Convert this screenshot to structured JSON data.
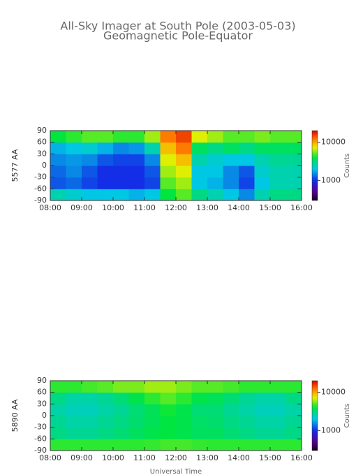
{
  "title": "All-Sky Imager at South Pole (2003-05-03)",
  "subtitle": "Geomagnetic Pole-Equator",
  "chart_data": [
    {
      "type": "heatmap",
      "ylabel": "5577 AA",
      "x": [
        8.25,
        8.75,
        9.25,
        9.75,
        10.25,
        10.75,
        11.25,
        11.75,
        12.25,
        12.75,
        13.25,
        13.75,
        14.25,
        14.75,
        15.25,
        15.75
      ],
      "y": [
        -75,
        -45,
        -15,
        15,
        45,
        75
      ],
      "values": [
        [
          2500,
          2200,
          2000,
          2000,
          2000,
          1800,
          2000,
          4000,
          5000,
          3000,
          2500,
          2000,
          1500,
          2500,
          3000,
          3000
        ],
        [
          1200,
          1300,
          1100,
          1000,
          1000,
          1000,
          1100,
          5000,
          6000,
          2000,
          1800,
          1500,
          1100,
          2000,
          2500,
          2500
        ],
        [
          1300,
          1500,
          1200,
          1000,
          1000,
          1000,
          1200,
          6000,
          7000,
          2000,
          2000,
          1500,
          1200,
          2200,
          2500,
          2500
        ],
        [
          1500,
          1600,
          1500,
          1200,
          1100,
          1100,
          1500,
          7000,
          9000,
          2500,
          2200,
          2000,
          2000,
          2500,
          2800,
          2800
        ],
        [
          1800,
          2000,
          2200,
          1800,
          1500,
          1600,
          2500,
          9000,
          12000,
          3500,
          3000,
          3500,
          3000,
          3500,
          3500,
          3500
        ],
        [
          4000,
          4500,
          5000,
          5000,
          4500,
          4500,
          6000,
          12000,
          15000,
          7000,
          6000,
          5000,
          5000,
          5500,
          5000,
          5000
        ]
      ],
      "xlim": [
        8,
        16
      ],
      "xticks": [
        {
          "value": 8,
          "label": "08:00"
        },
        {
          "value": 9,
          "label": "09:00"
        },
        {
          "value": 10,
          "label": "10:00"
        },
        {
          "value": 11,
          "label": "11:00"
        },
        {
          "value": 12,
          "label": "12:00"
        },
        {
          "value": 13,
          "label": "13:00"
        },
        {
          "value": 14,
          "label": "14:00"
        },
        {
          "value": 15,
          "label": "15:00"
        },
        {
          "value": 16,
          "label": "16:00"
        }
      ],
      "ylim": [
        -90,
        90
      ],
      "yticks": [
        -90,
        -60,
        -30,
        0,
        30,
        60,
        90
      ],
      "colorbar": {
        "label": "Counts",
        "lim": [
          300,
          20000
        ],
        "ticks": [
          1000,
          10000
        ],
        "log": true
      }
    },
    {
      "type": "heatmap",
      "ylabel": "5890 AA",
      "xlabel": "Universal Time",
      "x": [
        8.25,
        8.75,
        9.25,
        9.75,
        10.25,
        10.75,
        11.25,
        11.75,
        12.25,
        12.75,
        13.25,
        13.75,
        14.25,
        14.75,
        15.25,
        15.75
      ],
      "y": [
        -75,
        -45,
        -15,
        15,
        45,
        75
      ],
      "values": [
        [
          4500,
          4500,
          4500,
          4500,
          4500,
          4500,
          4600,
          4800,
          4800,
          4600,
          4500,
          4500,
          4500,
          4500,
          4500,
          4500
        ],
        [
          3000,
          2800,
          2800,
          3000,
          3200,
          3500,
          3800,
          4000,
          3800,
          3500,
          3500,
          3200,
          3000,
          2800,
          2800,
          3000
        ],
        [
          2800,
          2600,
          2600,
          2800,
          3000,
          3300,
          3600,
          4000,
          3800,
          3400,
          3300,
          3000,
          2800,
          2600,
          2600,
          2800
        ],
        [
          2600,
          2400,
          2400,
          2600,
          2800,
          3200,
          3600,
          4200,
          3800,
          3200,
          3200,
          2800,
          2600,
          2400,
          2400,
          2600
        ],
        [
          3000,
          2600,
          2600,
          2800,
          3200,
          3800,
          4500,
          5000,
          4500,
          3800,
          3600,
          3200,
          2800,
          2600,
          2600,
          3000
        ],
        [
          4500,
          4500,
          4800,
          5000,
          5500,
          5500,
          6000,
          6000,
          5500,
          5000,
          5000,
          4800,
          4500,
          4500,
          4500,
          4500
        ]
      ],
      "xlim": [
        8,
        16
      ],
      "xticks": [
        {
          "value": 8,
          "label": "08:00"
        },
        {
          "value": 9,
          "label": "09:00"
        },
        {
          "value": 10,
          "label": "10:00"
        },
        {
          "value": 11,
          "label": "11:00"
        },
        {
          "value": 12,
          "label": "12:00"
        },
        {
          "value": 13,
          "label": "13:00"
        },
        {
          "value": 14,
          "label": "14:00"
        },
        {
          "value": 15,
          "label": "15:00"
        },
        {
          "value": 16,
          "label": "16:00"
        }
      ],
      "ylim": [
        -90,
        90
      ],
      "yticks": [
        -90,
        -60,
        -30,
        0,
        30,
        60,
        90
      ],
      "colorbar": {
        "label": "Counts",
        "lim": [
          300,
          20000
        ],
        "ticks": [
          1000,
          10000
        ],
        "log": true
      }
    }
  ]
}
